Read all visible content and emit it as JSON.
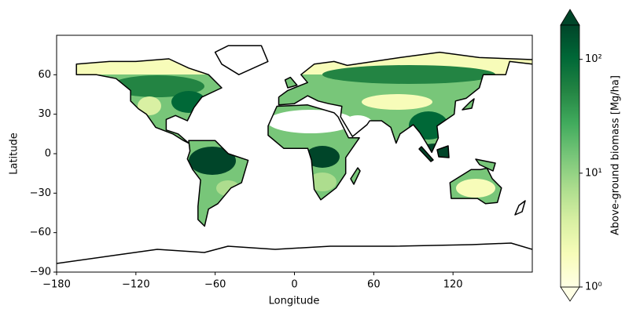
{
  "chart_data": {
    "type": "map",
    "xlabel": "Longitude",
    "ylabel": "Latitude",
    "xlim": [
      -180,
      180
    ],
    "ylim": [
      -90,
      90
    ],
    "xticks": [
      {
        "value": -180,
        "label": "−180"
      },
      {
        "value": -120,
        "label": "−120"
      },
      {
        "value": -60,
        "label": "−60"
      },
      0,
      60,
      120
    ],
    "yticks": [
      {
        "value": -90,
        "label": "−90"
      },
      {
        "value": -60,
        "label": "−60"
      },
      {
        "value": -30,
        "label": "−30"
      },
      0,
      30,
      60
    ],
    "colorbar": {
      "label": "Above-ground biomass [Mg/ha]",
      "scale": "log",
      "lim": [
        1,
        200
      ],
      "ticks": [
        {
          "value": 1,
          "label": "10⁰"
        },
        {
          "value": 10,
          "label": "10¹"
        },
        {
          "value": 100,
          "label": "10²"
        }
      ]
    }
  }
}
